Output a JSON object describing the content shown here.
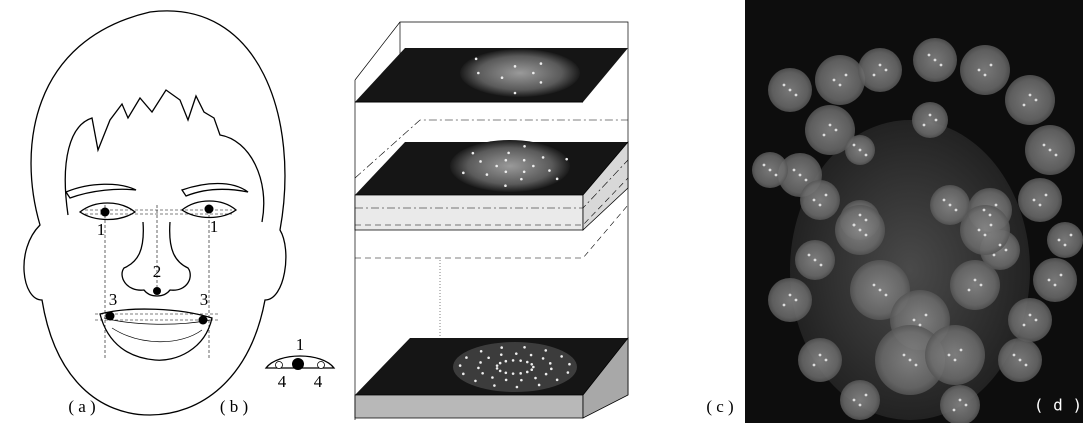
{
  "panel_a": {
    "caption": "( a )",
    "landmarks": [
      "1",
      "1",
      "2",
      "3",
      "3"
    ]
  },
  "panel_b": {
    "caption": "( b )",
    "landmarks": [
      "1",
      "4",
      "4"
    ]
  },
  "panel_c": {
    "caption": "( c )"
  },
  "panel_d": {
    "caption": "( d )"
  }
}
